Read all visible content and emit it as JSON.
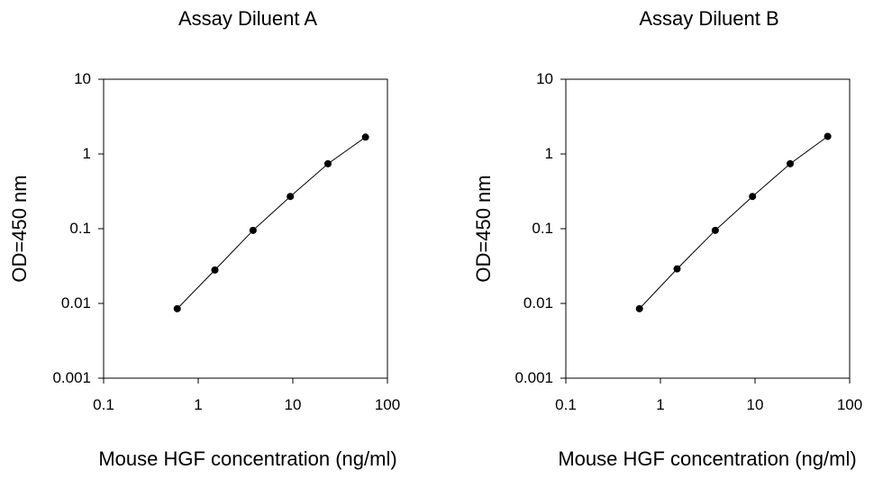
{
  "chart_data": [
    {
      "type": "line",
      "title": "Assay Diluent A",
      "xlabel": "Mouse HGF concentration (ng/ml)",
      "ylabel": "OD=450 nm",
      "xscale": "log",
      "yscale": "log",
      "xlim": [
        0.1,
        100
      ],
      "ylim": [
        0.001,
        10
      ],
      "x_ticks": [
        "0.1",
        "1",
        "10",
        "100"
      ],
      "y_ticks": [
        "10",
        "1",
        "0.1",
        "0.01",
        "0.001"
      ],
      "grid": false,
      "series": [
        {
          "x": [
            0.6,
            1.5,
            3.8,
            9.4,
            23.5,
            58.6
          ],
          "y": [
            0.0085,
            0.028,
            0.095,
            0.27,
            0.74,
            1.68
          ]
        }
      ]
    },
    {
      "type": "line",
      "title": "Assay Diluent B",
      "xlabel": "Mouse HGF concentration (ng/ml)",
      "ylabel": "OD=450 nm",
      "xscale": "log",
      "yscale": "log",
      "xlim": [
        0.1,
        100
      ],
      "ylim": [
        0.001,
        10
      ],
      "x_ticks": [
        "0.1",
        "1",
        "10",
        "100"
      ],
      "y_ticks": [
        "10",
        "1",
        "0.1",
        "0.01",
        "0.001"
      ],
      "grid": false,
      "series": [
        {
          "x": [
            0.6,
            1.5,
            3.8,
            9.4,
            23.5,
            58.6
          ],
          "y": [
            0.0085,
            0.029,
            0.095,
            0.27,
            0.74,
            1.72
          ]
        }
      ]
    }
  ]
}
